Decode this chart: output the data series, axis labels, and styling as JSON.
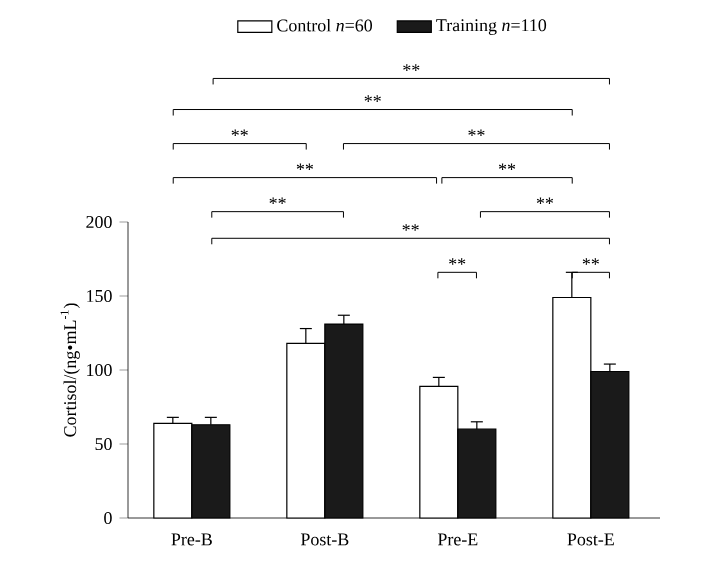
{
  "chart_data": {
    "type": "bar",
    "ylabel": "Cortisol/(ng•mL$^{-1}$)",
    "categories": [
      "Pre-B",
      "Post-B",
      "Pre-E",
      "Post-E"
    ],
    "series": [
      {
        "name": "Control *n*=60",
        "color": "#ffffff",
        "values": [
          64,
          118,
          89,
          149
        ],
        "errors": [
          4,
          10,
          6,
          17
        ]
      },
      {
        "name": "Training *n*=110",
        "color": "#1a1a1a",
        "values": [
          63,
          131,
          60,
          99
        ],
        "errors": [
          5,
          6,
          5,
          5
        ]
      }
    ],
    "ylim": [
      0,
      200
    ],
    "yticks": [
      0,
      50,
      100,
      150,
      200
    ],
    "grid": false,
    "legend": "top",
    "annotations": [
      "**",
      "**",
      "**",
      "**",
      "**",
      "**",
      "**",
      "**",
      "**",
      "**",
      "**"
    ]
  }
}
